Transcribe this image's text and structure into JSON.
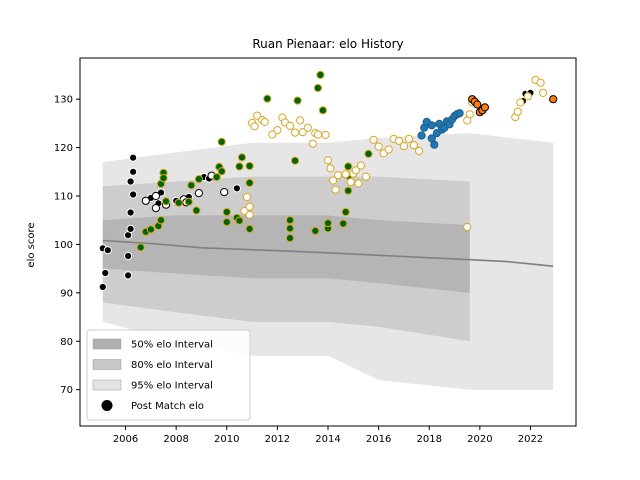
{
  "chart_data": {
    "type": "scatter",
    "title": "Ruan Pienaar: elo History",
    "xlabel": "",
    "ylabel": "elo score",
    "xlim": [
      2004.2,
      2023.8
    ],
    "ylim": [
      62.5,
      138.5
    ],
    "xticks": [
      "2006",
      "2008",
      "2010",
      "2012",
      "2014",
      "2016",
      "2018",
      "2020",
      "2022"
    ],
    "yticks": [
      "70",
      "80",
      "90",
      "100",
      "110",
      "120",
      "130"
    ],
    "legend": {
      "placement": "lower-left",
      "items": [
        {
          "label": "50% elo Interval",
          "color": "#b0b0b0",
          "kind": "patch"
        },
        {
          "label": "80% elo Interval",
          "color": "#c8c8c8",
          "kind": "patch"
        },
        {
          "label": "95% elo Interval",
          "color": "#e2e2e2",
          "kind": "patch"
        },
        {
          "label": "Post Match elo",
          "color": "#000000",
          "kind": "marker"
        }
      ]
    },
    "series": [
      {
        "marker_fill": "#000000",
        "marker_edge": "#ffffff",
        "points": [
          [
            2005.1,
            91.2
          ],
          [
            2005.2,
            94.1
          ],
          [
            2005.1,
            99.2
          ],
          [
            2005.3,
            98.8
          ],
          [
            2006.1,
            93.6
          ],
          [
            2006.1,
            97.6
          ],
          [
            2006.1,
            101.9
          ],
          [
            2006.2,
            103.2
          ],
          [
            2006.2,
            106.6
          ],
          [
            2006.3,
            110.3
          ],
          [
            2006.2,
            113.0
          ],
          [
            2006.3,
            115.0
          ],
          [
            2006.3,
            117.9
          ],
          [
            2007.0,
            109.6
          ],
          [
            2007.3,
            108.5
          ],
          [
            2007.4,
            110.7
          ],
          [
            2008.0,
            109.0
          ],
          [
            2008.5,
            109.8
          ],
          [
            2009.1,
            113.9
          ],
          [
            2009.3,
            113.6
          ],
          [
            2010.4,
            111.6
          ],
          [
            2021.7,
            129.6
          ],
          [
            2021.8,
            131.1
          ],
          [
            2022.0,
            131.3
          ]
        ]
      },
      {
        "marker_fill": "#ffffff",
        "marker_edge": "#000000",
        "points": [
          [
            2006.8,
            109.0
          ],
          [
            2007.2,
            110.0
          ],
          [
            2007.2,
            107.5
          ],
          [
            2007.6,
            108.2
          ],
          [
            2008.3,
            109.3
          ],
          [
            2008.4,
            108.7
          ],
          [
            2008.9,
            110.6
          ],
          [
            2009.4,
            114.2
          ],
          [
            2009.9,
            110.8
          ]
        ]
      },
      {
        "marker_fill": "#006400",
        "marker_edge": "#daa520",
        "points": [
          [
            2006.6,
            99.4
          ],
          [
            2006.8,
            102.6
          ],
          [
            2007.0,
            103.1
          ],
          [
            2007.3,
            103.8
          ],
          [
            2007.4,
            105.0
          ],
          [
            2007.4,
            112.5
          ],
          [
            2007.5,
            114.8
          ],
          [
            2007.5,
            113.7
          ],
          [
            2007.6,
            108.9
          ],
          [
            2008.1,
            108.6
          ],
          [
            2008.5,
            108.8
          ],
          [
            2008.6,
            112.2
          ],
          [
            2008.8,
            107.0
          ],
          [
            2008.9,
            113.5
          ],
          [
            2009.6,
            113.9
          ],
          [
            2009.7,
            116.0
          ],
          [
            2009.8,
            115.1
          ],
          [
            2009.8,
            121.2
          ],
          [
            2010.0,
            104.6
          ],
          [
            2010.0,
            106.7
          ],
          [
            2010.4,
            105.5
          ],
          [
            2010.5,
            104.9
          ],
          [
            2010.5,
            116.1
          ],
          [
            2010.6,
            118.0
          ],
          [
            2010.9,
            103.2
          ],
          [
            2010.9,
            116.2
          ],
          [
            2010.9,
            112.7
          ],
          [
            2011.6,
            130.1
          ],
          [
            2012.5,
            101.3
          ],
          [
            2012.5,
            103.3
          ],
          [
            2012.5,
            105.0
          ],
          [
            2012.7,
            117.3
          ],
          [
            2012.8,
            129.7
          ],
          [
            2013.5,
            102.8
          ],
          [
            2013.6,
            132.3
          ],
          [
            2013.7,
            135.0
          ],
          [
            2013.8,
            127.7
          ],
          [
            2014.0,
            103.3
          ],
          [
            2014.0,
            104.4
          ],
          [
            2014.6,
            104.3
          ],
          [
            2014.7,
            106.7
          ],
          [
            2014.8,
            111.1
          ],
          [
            2014.8,
            114.2
          ],
          [
            2014.8,
            116.1
          ],
          [
            2015.6,
            118.7
          ]
        ]
      },
      {
        "marker_fill": "#ffffff",
        "marker_edge": "#daa520",
        "points": [
          [
            2010.7,
            106.9
          ],
          [
            2010.8,
            109.8
          ],
          [
            2010.9,
            107.8
          ],
          [
            2010.9,
            106.1
          ],
          [
            2011.0,
            125.1
          ],
          [
            2011.1,
            124.4
          ],
          [
            2011.2,
            126.6
          ],
          [
            2011.4,
            125.7
          ],
          [
            2011.5,
            125.3
          ],
          [
            2011.8,
            122.7
          ],
          [
            2012.0,
            123.6
          ],
          [
            2012.2,
            126.2
          ],
          [
            2012.3,
            125.2
          ],
          [
            2012.5,
            124.5
          ],
          [
            2012.7,
            123.1
          ],
          [
            2012.9,
            125.6
          ],
          [
            2013.0,
            123.2
          ],
          [
            2013.2,
            124.1
          ],
          [
            2013.4,
            120.8
          ],
          [
            2013.5,
            123.0
          ],
          [
            2013.6,
            122.7
          ],
          [
            2013.9,
            122.6
          ],
          [
            2014.0,
            117.4
          ],
          [
            2014.1,
            115.7
          ],
          [
            2014.2,
            113.2
          ],
          [
            2014.3,
            111.3
          ],
          [
            2014.4,
            114.3
          ],
          [
            2014.7,
            114.5
          ],
          [
            2014.9,
            112.9
          ],
          [
            2015.0,
            114.6
          ],
          [
            2015.1,
            115.3
          ],
          [
            2015.2,
            112.6
          ],
          [
            2015.3,
            116.3
          ],
          [
            2015.5,
            114.0
          ],
          [
            2015.8,
            121.6
          ],
          [
            2016.0,
            120.2
          ],
          [
            2016.2,
            118.8
          ],
          [
            2016.4,
            119.6
          ],
          [
            2016.6,
            121.8
          ],
          [
            2016.8,
            121.4
          ],
          [
            2017.0,
            120.3
          ],
          [
            2017.2,
            121.8
          ],
          [
            2017.4,
            120.5
          ],
          [
            2017.6,
            119.3
          ],
          [
            2019.5,
            103.6
          ],
          [
            2019.5,
            125.6
          ],
          [
            2019.6,
            126.9
          ],
          [
            2019.7,
            129.3
          ],
          [
            2021.4,
            126.3
          ],
          [
            2021.5,
            127.4
          ],
          [
            2021.6,
            129.3
          ],
          [
            2021.9,
            130.6
          ],
          [
            2022.2,
            134.0
          ],
          [
            2022.4,
            133.4
          ],
          [
            2022.5,
            131.3
          ]
        ]
      },
      {
        "marker_fill": "#1f77b4",
        "marker_edge": "#1f5f8b",
        "points": [
          [
            2017.7,
            122.5
          ],
          [
            2017.8,
            124.1
          ],
          [
            2017.9,
            125.3
          ],
          [
            2018.1,
            124.6
          ],
          [
            2018.1,
            121.9
          ],
          [
            2018.2,
            120.6
          ],
          [
            2018.3,
            123.0
          ],
          [
            2018.4,
            124.9
          ],
          [
            2018.5,
            123.7
          ],
          [
            2018.6,
            124.1
          ],
          [
            2018.7,
            125.4
          ],
          [
            2018.8,
            124.8
          ],
          [
            2018.9,
            125.8
          ],
          [
            2019.0,
            126.5
          ],
          [
            2019.1,
            126.9
          ],
          [
            2019.2,
            127.1
          ]
        ]
      },
      {
        "marker_fill": "#ff7f0e",
        "marker_edge": "#000000",
        "points": [
          [
            2019.7,
            130.0
          ],
          [
            2019.8,
            129.5
          ],
          [
            2019.9,
            128.9
          ],
          [
            2020.0,
            127.3
          ],
          [
            2020.1,
            127.7
          ],
          [
            2020.2,
            128.3
          ],
          [
            2022.9,
            130.0
          ]
        ]
      }
    ],
    "mean_line": {
      "color": "#808080",
      "points": [
        [
          2005.1,
          100.8
        ],
        [
          2007,
          100.2
        ],
        [
          2009,
          99.3
        ],
        [
          2011,
          98.9
        ],
        [
          2013,
          98.5
        ],
        [
          2015,
          98.0
        ],
        [
          2017,
          97.5
        ],
        [
          2019,
          97.0
        ],
        [
          2021,
          96.5
        ],
        [
          2022.9,
          95.5
        ]
      ]
    },
    "interval_bands": [
      {
        "label": "95% elo Interval",
        "color": "#e2e2e2",
        "x": [
          2005.1,
          2008,
          2011,
          2014,
          2016,
          2019.6,
          2022.9
        ],
        "upper": [
          117,
          119,
          121,
          121,
          122,
          123,
          121
        ],
        "lower": [
          84,
          80,
          77,
          77,
          72,
          70,
          70
        ]
      },
      {
        "label": "80% elo Interval",
        "color": "#c8c8c8",
        "x": [
          2005.1,
          2008,
          2011,
          2014,
          2016,
          2019.6
        ],
        "upper": [
          112,
          113,
          114,
          114,
          114,
          113
        ],
        "lower": [
          88,
          86,
          84,
          84,
          83,
          80
        ]
      },
      {
        "label": "50% elo Interval",
        "color": "#b0b0b0",
        "x": [
          2005.1,
          2008,
          2011,
          2014,
          2016,
          2019.6
        ],
        "upper": [
          105,
          106,
          106,
          106,
          105,
          104
        ],
        "lower": [
          95,
          94,
          93,
          93,
          92,
          90
        ]
      }
    ]
  }
}
